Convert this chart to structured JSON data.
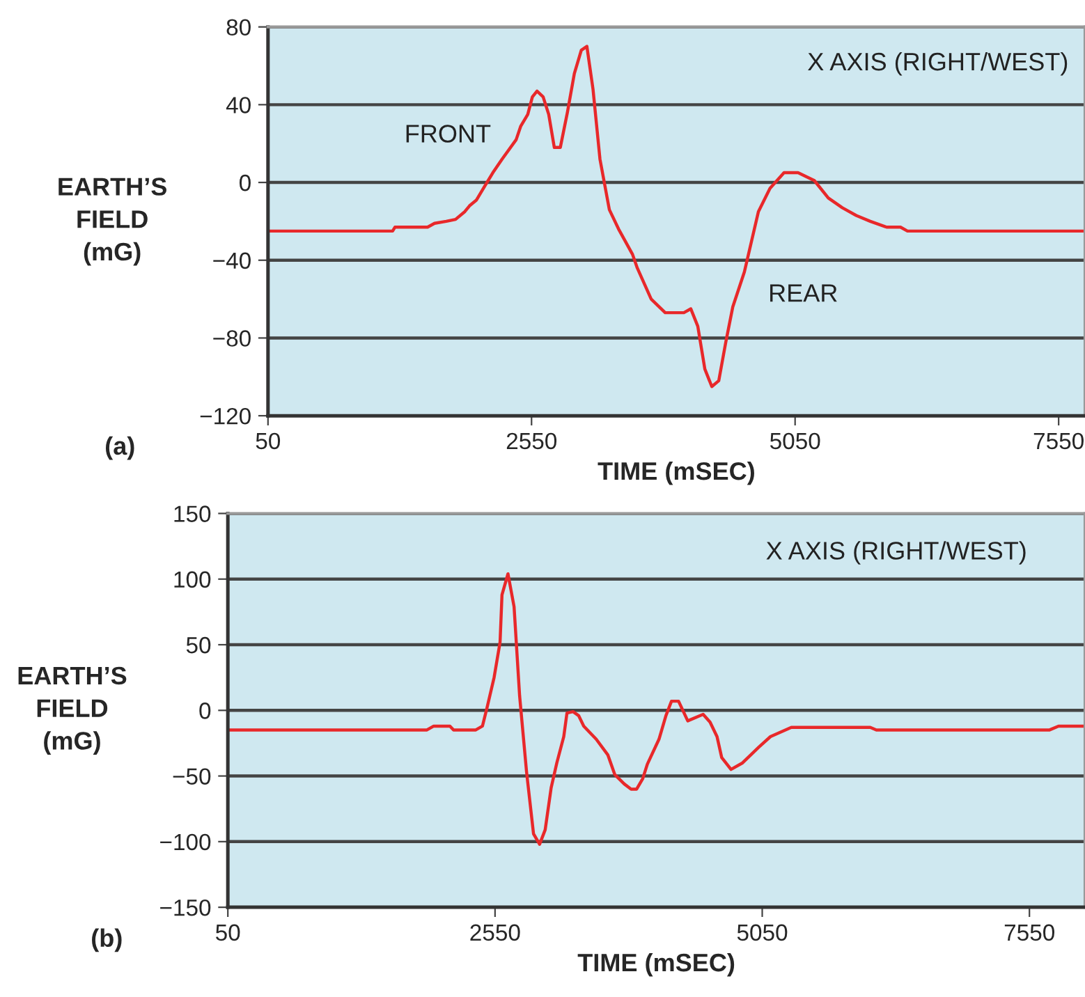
{
  "chart_data": [
    {
      "type": "line",
      "xlabel": "TIME (mSEC)",
      "ylabel": "EARTH’S\nFIELD\n(mG)",
      "grid": "y",
      "legend": false,
      "marker": "none",
      "line_style": "solid",
      "xlim": [
        50,
        7800
      ],
      "xticks": [
        50,
        2550,
        5050,
        7550
      ],
      "ylim": [
        -120,
        80
      ],
      "yticks": [
        -120,
        -80,
        -40,
        0,
        40,
        80
      ],
      "annotations": [
        "(a)",
        "FRONT",
        "REAR",
        "X AXIS (RIGHT/WEST)"
      ],
      "series": [
        {
          "color": "#e8282a",
          "x": [
            50,
            1232,
            1254,
            1564,
            1630,
            1741,
            1829,
            1917,
            1962,
            2028,
            2094,
            2183,
            2271,
            2404,
            2448,
            2514,
            2558,
            2602,
            2660,
            2713,
            2766,
            2823,
            2890,
            2956,
            3022,
            3075,
            3133,
            3199,
            3288,
            3376,
            3508,
            3553,
            3685,
            3818,
            3995,
            4061,
            4127,
            4194,
            4260,
            4326,
            4393,
            4459,
            4569,
            4702,
            4812,
            4945,
            5078,
            5232,
            5365,
            5498,
            5630,
            5763,
            5918,
            6050,
            6116,
            7800
          ],
          "values": [
            -25,
            -25,
            -23,
            -23,
            -21,
            -20,
            -19,
            -15,
            -12,
            -9,
            -3,
            5,
            12,
            22,
            29,
            35,
            44,
            47,
            44,
            35,
            18,
            18,
            36,
            56,
            68,
            70,
            48,
            12,
            -14,
            -24,
            -37,
            -44,
            -60,
            -67,
            -67,
            -65,
            -74,
            -96,
            -105,
            -102,
            -82,
            -64,
            -46,
            -15,
            -3,
            5,
            5,
            1,
            -8,
            -13,
            -17,
            -20,
            -23,
            -23,
            -25,
            -25
          ]
        }
      ]
    },
    {
      "type": "line",
      "xlabel": "TIME (mSEC)",
      "ylabel": "EARTH’S\nFIELD\n(mG)",
      "grid": "y",
      "legend": false,
      "marker": "none",
      "line_style": "solid",
      "xlim": [
        50,
        8070
      ],
      "xticks": [
        50,
        2550,
        5050,
        7550
      ],
      "ylim": [
        -150,
        150
      ],
      "yticks": [
        -150,
        -100,
        -50,
        0,
        50,
        100,
        150
      ],
      "annotations": [
        "(b)",
        "X AXIS (RIGHT/WEST)"
      ],
      "series": [
        {
          "color": "#e8282a",
          "x": [
            50,
            1910,
            1976,
            2128,
            2162,
            2367,
            2432,
            2475,
            2541,
            2597,
            2615,
            2671,
            2728,
            2780,
            2845,
            2910,
            2967,
            3019,
            3075,
            3128,
            3193,
            3223,
            3280,
            3332,
            3380,
            3497,
            3606,
            3671,
            3758,
            3823,
            3875,
            3932,
            3975,
            4084,
            4149,
            4201,
            4267,
            4353,
            4497,
            4562,
            4627,
            4671,
            4758,
            4866,
            5018,
            5127,
            5322,
            6061,
            6118,
            7735,
            7822,
            8070
          ],
          "values": [
            -15,
            -15,
            -12,
            -12,
            -15,
            -15,
            -12,
            2,
            25,
            52,
            88,
            104,
            79,
            11,
            -47,
            -94,
            -102,
            -91,
            -59,
            -40,
            -20,
            -2,
            -1,
            -4,
            -12,
            -22,
            -34,
            -49,
            -56,
            -60,
            -60,
            -52,
            -41,
            -22,
            -4,
            7,
            7,
            -8,
            -3,
            -9,
            -20,
            -36,
            -45,
            -40,
            -28,
            -20,
            -13,
            -13,
            -15,
            -15,
            -12,
            -12
          ]
        }
      ]
    }
  ]
}
